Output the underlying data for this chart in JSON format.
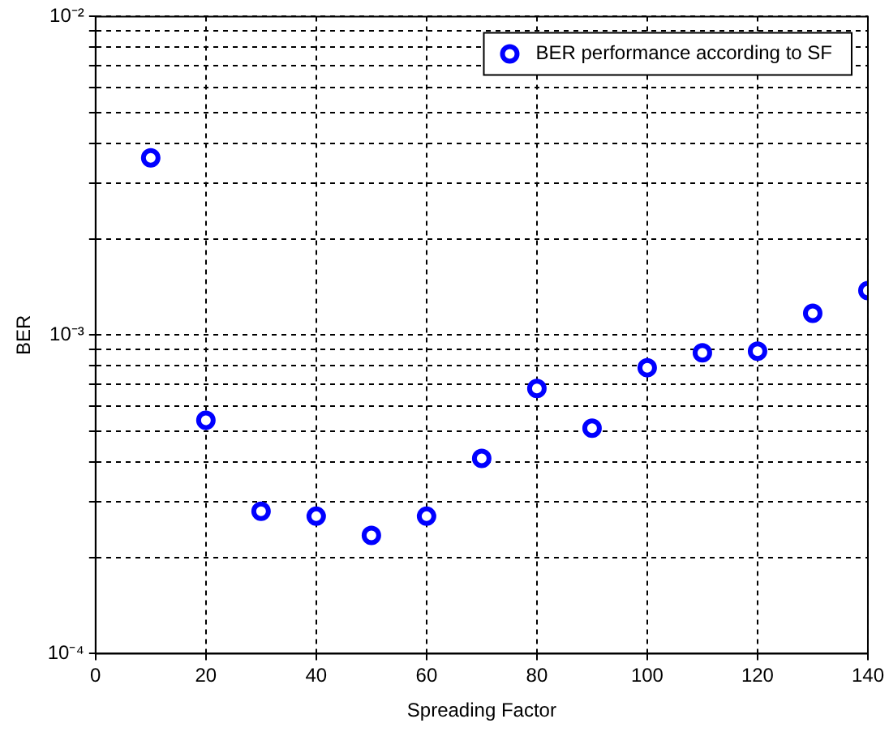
{
  "chart_data": {
    "type": "scatter",
    "xlabel": "Spreading Factor",
    "ylabel": "BER",
    "x": [
      10,
      20,
      30,
      40,
      50,
      60,
      70,
      80,
      90,
      100,
      110,
      120,
      130,
      140
    ],
    "series": [
      {
        "name": "BER performance according to SF",
        "color": "#0000ff",
        "values": [
          0.0036,
          0.00054,
          0.00028,
          0.00027,
          0.000235,
          0.00027,
          0.00041,
          0.00068,
          0.00051,
          0.00079,
          0.00088,
          0.00089,
          0.00117,
          0.00138
        ]
      }
    ],
    "xlim": [
      0,
      140
    ],
    "xticks": [
      0,
      20,
      40,
      60,
      80,
      100,
      120,
      140
    ],
    "ylim": [
      0.0001,
      0.01
    ],
    "yticks": [
      {
        "value": 0.0001,
        "label": "10⁻⁴"
      },
      {
        "value": 0.0002,
        "label": null
      },
      {
        "value": 0.0003,
        "label": null
      },
      {
        "value": 0.0004,
        "label": null
      },
      {
        "value": 0.0005,
        "label": null
      },
      {
        "value": 0.0006,
        "label": null
      },
      {
        "value": 0.0007,
        "label": null
      },
      {
        "value": 0.0008,
        "label": null
      },
      {
        "value": 0.0009,
        "label": null
      },
      {
        "value": 0.001,
        "label": "10⁻³"
      },
      {
        "value": 0.002,
        "label": null
      },
      {
        "value": 0.003,
        "label": null
      },
      {
        "value": 0.004,
        "label": null
      },
      {
        "value": 0.005,
        "label": null
      },
      {
        "value": 0.006,
        "label": null
      },
      {
        "value": 0.007,
        "label": null
      },
      {
        "value": 0.008,
        "label": null
      },
      {
        "value": 0.009,
        "label": null
      },
      {
        "value": 0.01,
        "label": "10⁻²"
      }
    ],
    "log": "y",
    "grid": true,
    "legend": "top right",
    "marker": "circle"
  }
}
